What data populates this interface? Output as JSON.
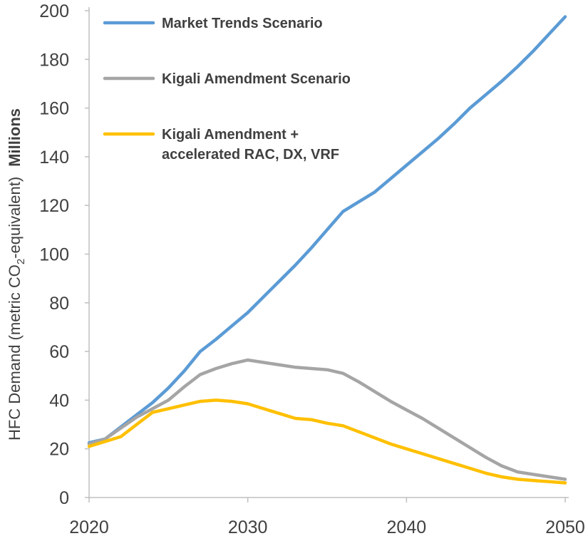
{
  "chart_data": {
    "type": "line",
    "ylabel": "HFC Demand (metric CO",
    "ylabel_sub": "2",
    "ylabel_tail": "-equivalent)",
    "ylabel_units": "Millions",
    "xlim": [
      2020,
      2050
    ],
    "ylim": [
      0,
      200
    ],
    "xticks": [
      2020,
      2030,
      2040,
      2050
    ],
    "yticks": [
      0,
      20,
      40,
      60,
      80,
      100,
      120,
      140,
      160,
      180,
      200
    ],
    "grid": false,
    "legend_position": "top-left",
    "series": [
      {
        "name": "Market Trends Scenario",
        "color": "#5b9bd5",
        "x": [
          2020,
          2021,
          2022,
          2023,
          2024,
          2025,
          2026,
          2027,
          2028,
          2029,
          2030,
          2031,
          2032,
          2033,
          2034,
          2035,
          2036,
          2037,
          2038,
          2039,
          2040,
          2041,
          2042,
          2043,
          2044,
          2045,
          2046,
          2047,
          2048,
          2049,
          2050
        ],
        "values": [
          22.5,
          24,
          29,
          34,
          39,
          45,
          52,
          60,
          65,
          70.5,
          76,
          82.5,
          89,
          95.5,
          102.5,
          110,
          117.5,
          121.5,
          125.5,
          131,
          136.5,
          142,
          147.5,
          153.5,
          160,
          165.5,
          171,
          177,
          183.5,
          190.5,
          197.5
        ]
      },
      {
        "name": "Kigali Amendment Scenario",
        "color": "#a5a5a5",
        "x": [
          2020,
          2021,
          2022,
          2023,
          2024,
          2025,
          2026,
          2027,
          2028,
          2029,
          2030,
          2031,
          2032,
          2033,
          2034,
          2035,
          2036,
          2037,
          2038,
          2039,
          2040,
          2041,
          2042,
          2043,
          2044,
          2045,
          2046,
          2047,
          2048,
          2049,
          2050
        ],
        "values": [
          22,
          24,
          28.5,
          33,
          36.5,
          40,
          45.5,
          50.5,
          53,
          55,
          56.5,
          55.5,
          54.5,
          53.5,
          53,
          52.5,
          51,
          47.5,
          43.5,
          39.5,
          36,
          32.5,
          28.5,
          24.5,
          20.5,
          16.5,
          13,
          10.5,
          9.5,
          8.5,
          7.5
        ]
      },
      {
        "name": "Kigali Amendment +\naccelerated RAC, DX, VRF",
        "color": "#ffc000",
        "x": [
          2020,
          2021,
          2022,
          2023,
          2024,
          2025,
          2026,
          2027,
          2028,
          2029,
          2030,
          2031,
          2032,
          2033,
          2034,
          2035,
          2036,
          2037,
          2038,
          2039,
          2040,
          2041,
          2042,
          2043,
          2044,
          2045,
          2046,
          2047,
          2048,
          2049,
          2050
        ],
        "values": [
          21,
          23,
          25,
          30,
          35,
          36.5,
          38,
          39.5,
          40,
          39.5,
          38.5,
          36.5,
          34.5,
          32.5,
          32,
          30.5,
          29.5,
          27,
          24.5,
          22,
          20,
          18,
          16,
          14,
          12,
          10,
          8.5,
          7.5,
          7,
          6.5,
          6
        ]
      }
    ]
  }
}
